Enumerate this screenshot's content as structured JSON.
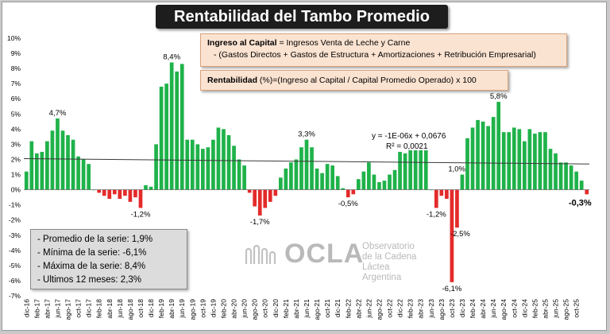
{
  "title": "Rentabilidad del Tambo Promedio",
  "formulas": {
    "income_label": "Ingreso al Capital",
    "income_def": " = Ingresos Venta de Leche y Carne",
    "income_deductions": "-  (Gastos Directos + Gastos de Estructura  + Amortizaciones +  Retribución Empresarial)",
    "return_label": "Rentabilidad",
    "return_def": " (%)=(Ingreso al Capital / Capital Promedio Operado) x 100"
  },
  "stats": [
    "- Promedio de la serie: 1,9%",
    "- Mínima de la serie: -6,1%",
    "- Máxima de la serie: 8,4%",
    "- Ultimos 12 meses: 2,3%"
  ],
  "watermark": {
    "brand": "OCLA",
    "line1": "Observatorio",
    "line2": "de la Cadena Láctea",
    "line3": "Argentina"
  },
  "colors": {
    "positive": "#1fb24a",
    "negative": "#e42a2a",
    "trend": "#3a3a3a",
    "box_fill": "#fbe3d1",
    "stats_fill": "#dcdcdc"
  },
  "chart_data": {
    "type": "bar",
    "title": "Rentabilidad del Tambo Promedio",
    "ylim": [
      -7,
      10
    ],
    "yticks": [
      "10%",
      "9%",
      "8%",
      "7%",
      "6%",
      "5%",
      "4%",
      "3%",
      "2%",
      "1%",
      "0%",
      "-1%",
      "-2%",
      "-3%",
      "-4%",
      "-5%",
      "-6%",
      "-7%"
    ],
    "xtick_labels": [
      "dic-16",
      "feb-17",
      "abr-17",
      "jun-17",
      "ago-17",
      "oct-17",
      "dic-17",
      "feb-18",
      "abr-18",
      "jun-18",
      "ago-18",
      "oct-18",
      "dic-18",
      "feb-19",
      "abr-19",
      "jun-19",
      "ago-19",
      "oct-19",
      "dic-19",
      "feb-20",
      "abr-20",
      "jun-20",
      "ago-20",
      "oct-20",
      "dic-20",
      "feb-21",
      "abr-21",
      "jun-21",
      "ago-21",
      "oct-21",
      "dic-21",
      "feb-22",
      "abr-22",
      "jun-22",
      "ago-22",
      "oct-22",
      "dic-22",
      "feb-23",
      "abr-23",
      "jun-23",
      "ago-23",
      "oct-23",
      "dic-23",
      "feb-24",
      "abr-24",
      "jun-24",
      "ago-24",
      "oct-24",
      "dic-24",
      "feb-25",
      "abr-25",
      "jun-25",
      "ago-25",
      "oct-25"
    ],
    "values": [
      1.2,
      3.2,
      2.4,
      2.5,
      3.2,
      3.9,
      4.7,
      3.9,
      3.6,
      3.3,
      2.2,
      2.0,
      1.7,
      0.0,
      -0.2,
      -0.4,
      -0.6,
      -0.3,
      -0.6,
      -0.4,
      -0.8,
      -0.5,
      -1.2,
      0.3,
      0.2,
      3.0,
      6.8,
      7.0,
      8.4,
      7.8,
      8.3,
      3.3,
      3.3,
      3.0,
      2.7,
      2.8,
      3.3,
      4.1,
      4.0,
      3.6,
      2.9,
      2.0,
      1.6,
      -0.2,
      -1.1,
      -1.7,
      -1.2,
      -0.8,
      -0.4,
      0.8,
      1.4,
      1.8,
      2.0,
      2.8,
      3.3,
      2.8,
      1.4,
      1.1,
      1.7,
      1.6,
      0.9,
      0.1,
      -0.5,
      -0.3,
      0.7,
      1.2,
      1.8,
      1.0,
      0.5,
      0.6,
      1.0,
      1.3,
      2.5,
      2.4,
      2.6,
      2.6,
      2.6,
      2.6,
      0.0,
      -1.2,
      -0.4,
      -0.6,
      -6.1,
      -2.5,
      1.0,
      3.4,
      4.1,
      4.6,
      4.5,
      4.2,
      4.8,
      5.8,
      3.8,
      3.8,
      4.1,
      4.0,
      3.2,
      4.0,
      3.7,
      3.8,
      3.8,
      2.7,
      2.4,
      1.8,
      1.8,
      1.6,
      1.2,
      0.6,
      -0.3
    ],
    "data_labels": [
      {
        "index": 6,
        "text": "4,7%"
      },
      {
        "index": 22,
        "text": "-1,2%"
      },
      {
        "index": 28,
        "text": "8,4%"
      },
      {
        "index": 45,
        "text": "-1,7%"
      },
      {
        "index": 54,
        "text": "3,3%"
      },
      {
        "index": 62,
        "text": "-0,5%"
      },
      {
        "index": 79,
        "text": "-1,2%"
      },
      {
        "index": 82,
        "text": "-6,1%"
      },
      {
        "index": 83,
        "text": "-2,5%"
      },
      {
        "index": 84,
        "text": "1,0%"
      },
      {
        "index": 91,
        "text": "5,8%"
      },
      {
        "index": 108,
        "text": "-0,3%"
      }
    ],
    "trendline": {
      "equation": "y = -1E-06x + 0,0676",
      "r2": "R² = 0,0021",
      "start": 2.05,
      "end": 1.7
    },
    "grid": false,
    "legend": "none"
  }
}
